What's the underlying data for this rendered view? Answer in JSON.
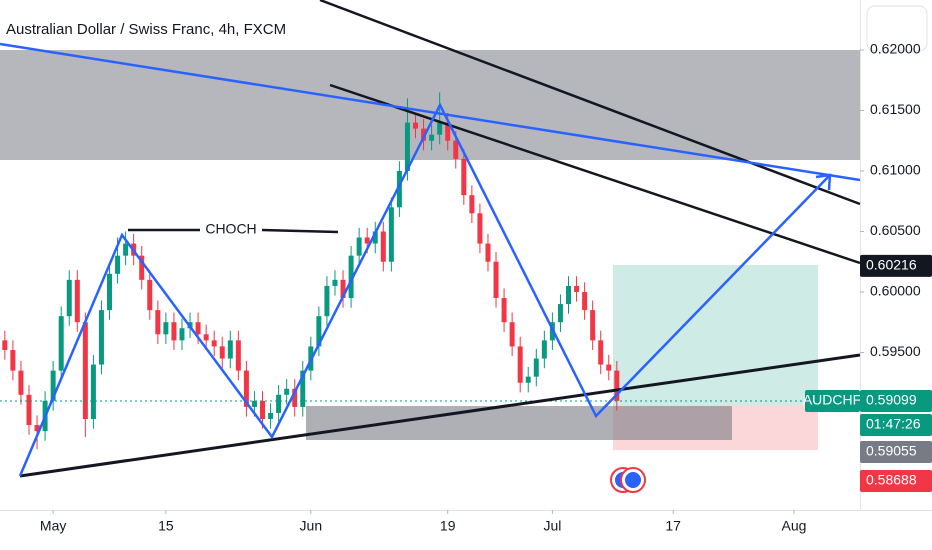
{
  "chart_data": {
    "type": "candlestick",
    "title": "Australian Dollar / Swiss Franc, 4h, FXCM",
    "annotation": "CHOCH",
    "symbol": "AUDCHF",
    "countdown": "01:47:26",
    "up_color": "#089981",
    "down_color": "#f23645",
    "xlim": [
      -0.6,
      106.2
    ],
    "xticks": [
      {
        "value": 6,
        "label": "May"
      },
      {
        "value": 20,
        "label": "15"
      },
      {
        "value": 38,
        "label": "Jun"
      },
      {
        "value": 55,
        "label": "19"
      },
      {
        "value": 68,
        "label": "Jul"
      },
      {
        "value": 83,
        "label": "17"
      },
      {
        "value": 98,
        "label": "Aug"
      }
    ],
    "ylim": [
      0.58198,
      0.62413
    ],
    "yticks": [
      {
        "value": 0.595,
        "label": "0.59500"
      },
      {
        "value": 0.6,
        "label": "0.60000"
      },
      {
        "value": 0.605,
        "label": "0.60500"
      },
      {
        "value": 0.61,
        "label": "0.61000"
      },
      {
        "value": 0.615,
        "label": "0.61500"
      },
      {
        "value": 0.62,
        "label": "0.62000"
      }
    ],
    "open": [
      0.596,
      0.5952,
      0.5935,
      0.5915,
      0.589,
      0.5885,
      0.591,
      0.5935,
      0.598,
      0.601,
      0.5975,
      0.5895,
      0.594,
      0.5985,
      0.6015,
      0.603,
      0.604,
      0.603,
      0.601,
      0.5985,
      0.5965,
      0.5975,
      0.596,
      0.597,
      0.5975,
      0.5965,
      0.596,
      0.5955,
      0.5945,
      0.596,
      0.5935,
      0.5905,
      0.591,
      0.5895,
      0.59,
      0.5915,
      0.592,
      0.5905,
      0.5935,
      0.5955,
      0.598,
      0.6005,
      0.601,
      0.5995,
      0.603,
      0.6045,
      0.604,
      0.605,
      0.6025,
      0.607,
      0.61,
      0.614,
      0.6135,
      0.6125,
      0.613,
      0.614,
      0.6125,
      0.611,
      0.608,
      0.6065,
      0.604,
      0.6025,
      0.5995,
      0.5975,
      0.5955,
      0.5925,
      0.593,
      0.5945,
      0.596,
      0.5975,
      0.599,
      0.6005,
      0.6,
      0.5985,
      0.596,
      0.594,
      0.5935
    ],
    "high": [
      0.5968,
      0.596,
      0.5943,
      0.5923,
      0.5898,
      0.5918,
      0.5943,
      0.5988,
      0.6018,
      0.6018,
      0.5983,
      0.5948,
      0.5993,
      0.6023,
      0.6045,
      0.605,
      0.6048,
      0.6038,
      0.6018,
      0.5993,
      0.5983,
      0.5983,
      0.5978,
      0.5983,
      0.5983,
      0.5973,
      0.5968,
      0.5963,
      0.5968,
      0.5968,
      0.5943,
      0.5918,
      0.5918,
      0.5908,
      0.5923,
      0.5928,
      0.5928,
      0.5943,
      0.5963,
      0.5988,
      0.6013,
      0.6018,
      0.6018,
      0.6038,
      0.6053,
      0.6053,
      0.6058,
      0.6058,
      0.6078,
      0.6108,
      0.616,
      0.6148,
      0.6143,
      0.6138,
      0.6165,
      0.6148,
      0.6133,
      0.6118,
      0.6088,
      0.6073,
      0.6048,
      0.6033,
      0.6003,
      0.5983,
      0.5963,
      0.5938,
      0.5953,
      0.5968,
      0.5983,
      0.5998,
      0.6013,
      0.6013,
      0.6008,
      0.5993,
      0.5968,
      0.5948,
      0.5943
    ],
    "low": [
      0.5944,
      0.5927,
      0.5907,
      0.5882,
      0.587,
      0.5877,
      0.5902,
      0.5927,
      0.5972,
      0.5967,
      0.588,
      0.5887,
      0.5932,
      0.5977,
      0.6007,
      0.6022,
      0.6022,
      0.6002,
      0.5977,
      0.5957,
      0.5957,
      0.5952,
      0.5952,
      0.5962,
      0.5957,
      0.5952,
      0.5947,
      0.5937,
      0.5937,
      0.5927,
      0.5897,
      0.5897,
      0.5887,
      0.5887,
      0.5892,
      0.5907,
      0.5897,
      0.5897,
      0.5927,
      0.5947,
      0.5972,
      0.5997,
      0.5987,
      0.5987,
      0.6022,
      0.6032,
      0.6032,
      0.6017,
      0.6017,
      0.6062,
      0.6092,
      0.6127,
      0.6117,
      0.6117,
      0.6122,
      0.6117,
      0.6102,
      0.6072,
      0.6057,
      0.6032,
      0.6017,
      0.5987,
      0.5967,
      0.5947,
      0.5917,
      0.5917,
      0.5922,
      0.5937,
      0.5952,
      0.5967,
      0.5982,
      0.5992,
      0.5977,
      0.5952,
      0.5932,
      0.5927,
      0.5902
    ],
    "close": [
      0.5952,
      0.5935,
      0.5915,
      0.589,
      0.5885,
      0.591,
      0.5935,
      0.598,
      0.601,
      0.5975,
      0.5895,
      0.594,
      0.5985,
      0.6015,
      0.603,
      0.604,
      0.603,
      0.601,
      0.5985,
      0.5965,
      0.5975,
      0.596,
      0.597,
      0.5975,
      0.5965,
      0.596,
      0.5955,
      0.5945,
      0.596,
      0.5935,
      0.5905,
      0.591,
      0.5895,
      0.59,
      0.5915,
      0.592,
      0.5905,
      0.5935,
      0.5955,
      0.598,
      0.6005,
      0.601,
      0.5995,
      0.603,
      0.6045,
      0.604,
      0.605,
      0.6025,
      0.607,
      0.61,
      0.614,
      0.6135,
      0.6125,
      0.613,
      0.614,
      0.6125,
      0.611,
      0.608,
      0.6065,
      0.604,
      0.6025,
      0.5995,
      0.5975,
      0.5955,
      0.5925,
      0.593,
      0.5945,
      0.596,
      0.5975,
      0.599,
      0.6005,
      0.6,
      0.5985,
      0.596,
      0.594,
      0.5935,
      0.591
    ],
    "line_price": 0.60216,
    "last_price": 0.59099,
    "entry_price": 0.59055,
    "stop_price": 0.58688
  }
}
